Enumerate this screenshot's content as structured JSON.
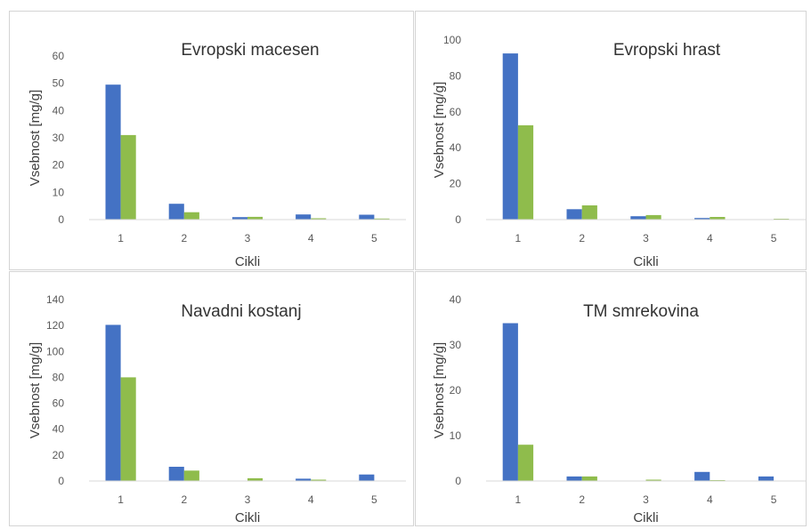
{
  "colors": {
    "series_1": "#4472c4",
    "series_2": "#8fbc4c",
    "axis": "#d9d9d9"
  },
  "chart_data": [
    {
      "type": "bar",
      "title": "Evropski macesen",
      "xlabel": "Cikli",
      "ylabel": "Vsebnost [mg/g]",
      "categories": [
        "1",
        "2",
        "3",
        "4",
        "5"
      ],
      "ylim": [
        0,
        60
      ],
      "yticks": [
        "0",
        "10",
        "20",
        "30",
        "40",
        "50",
        "60"
      ],
      "grid": false,
      "series": [
        {
          "values": [
            49.5,
            5.8,
            0.9,
            1.9,
            1.8
          ]
        },
        {
          "values": [
            31,
            2.7,
            1.0,
            0.5,
            0.4
          ]
        }
      ]
    },
    {
      "type": "bar",
      "title": "Evropski hrast",
      "xlabel": "Cikli",
      "ylabel": "Vsebnost [mg/g]",
      "categories": [
        "1",
        "2",
        "3",
        "4",
        "5"
      ],
      "ylim": [
        0,
        100
      ],
      "yticks": [
        "0",
        "20",
        "40",
        "60",
        "80",
        "100"
      ],
      "grid": false,
      "series": [
        {
          "values": [
            92.5,
            5.8,
            1.9,
            0.9,
            0
          ]
        },
        {
          "values": [
            52.5,
            7.9,
            2.5,
            1.5,
            0.5
          ]
        }
      ]
    },
    {
      "type": "bar",
      "title": "Navadni kostanj",
      "xlabel": "Cikli",
      "ylabel": "Vsebnost [mg/g]",
      "categories": [
        "1",
        "2",
        "3",
        "4",
        "5"
      ],
      "ylim": [
        0,
        140
      ],
      "yticks": [
        "0",
        "20",
        "40",
        "60",
        "80",
        "100",
        "120",
        "140"
      ],
      "grid": false,
      "series": [
        {
          "values": [
            120.5,
            11,
            0,
            1.8,
            5.0
          ]
        },
        {
          "values": [
            80,
            8.0,
            2.1,
            1.0,
            0
          ]
        }
      ]
    },
    {
      "type": "bar",
      "title": "TM smrekovina",
      "xlabel": "Cikli",
      "ylabel": "Vsebnost [mg/g]",
      "categories": [
        "1",
        "2",
        "3",
        "4",
        "5"
      ],
      "ylim": [
        0,
        40
      ],
      "yticks": [
        "0",
        "10",
        "20",
        "30",
        "40"
      ],
      "grid": false,
      "series": [
        {
          "values": [
            34.8,
            1.0,
            0,
            2.0,
            1.0
          ]
        },
        {
          "values": [
            8.0,
            1.0,
            0.3,
            0.2,
            0
          ]
        }
      ]
    }
  ]
}
